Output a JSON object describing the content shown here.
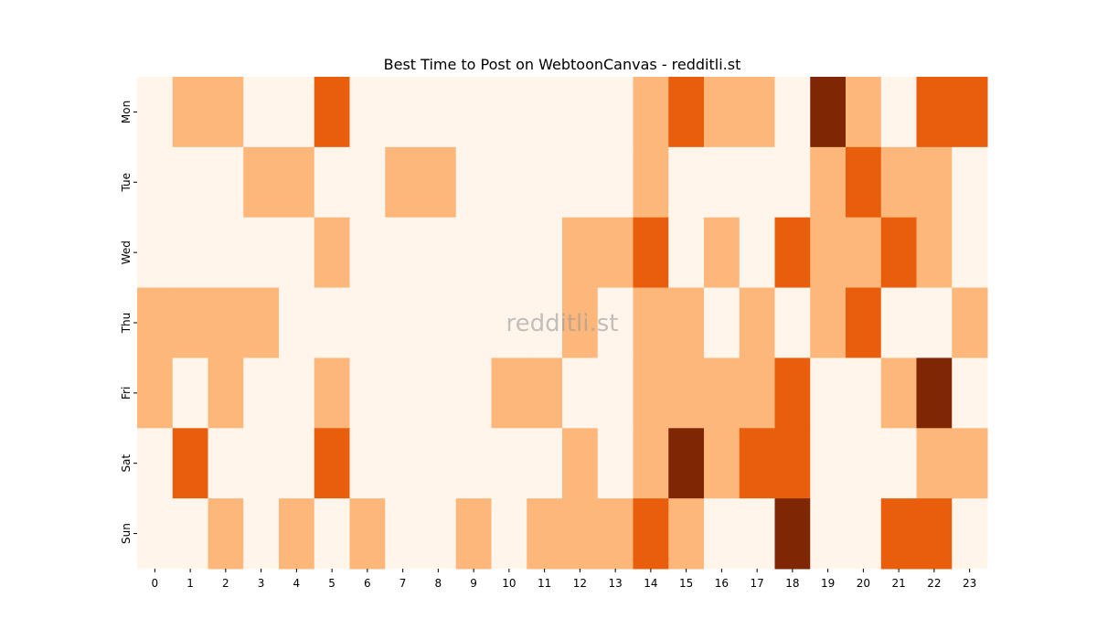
{
  "chart_data": {
    "type": "heatmap",
    "title": "Best Time to Post on WebtoonCanvas - redditli.st",
    "watermark": "redditli.st",
    "x_categories": [
      "0",
      "1",
      "2",
      "3",
      "4",
      "5",
      "6",
      "7",
      "8",
      "9",
      "10",
      "11",
      "12",
      "13",
      "14",
      "15",
      "16",
      "17",
      "18",
      "19",
      "20",
      "21",
      "22",
      "23"
    ],
    "y_categories": [
      "Mon",
      "Tue",
      "Wed",
      "Thu",
      "Fri",
      "Sat",
      "Sun"
    ],
    "values": [
      [
        0,
        1,
        1,
        0,
        0,
        2,
        0,
        0,
        0,
        0,
        0,
        0,
        0,
        0,
        1,
        2,
        1,
        1,
        0,
        3,
        1,
        0,
        2,
        2
      ],
      [
        0,
        0,
        0,
        1,
        1,
        0,
        0,
        1,
        1,
        0,
        0,
        0,
        0,
        0,
        1,
        0,
        0,
        0,
        0,
        1,
        2,
        1,
        1,
        0
      ],
      [
        0,
        0,
        0,
        0,
        0,
        1,
        0,
        0,
        0,
        0,
        0,
        0,
        1,
        1,
        2,
        0,
        1,
        0,
        2,
        1,
        1,
        2,
        1,
        0
      ],
      [
        1,
        1,
        1,
        1,
        0,
        0,
        0,
        0,
        0,
        0,
        0,
        0,
        1,
        0,
        1,
        1,
        0,
        1,
        0,
        1,
        2,
        0,
        0,
        1
      ],
      [
        1,
        0,
        1,
        0,
        0,
        1,
        0,
        0,
        0,
        0,
        1,
        1,
        0,
        0,
        1,
        1,
        1,
        1,
        2,
        0,
        0,
        1,
        3,
        0
      ],
      [
        0,
        2,
        0,
        0,
        0,
        2,
        0,
        0,
        0,
        0,
        0,
        0,
        1,
        0,
        1,
        3,
        1,
        2,
        2,
        0,
        0,
        0,
        1,
        1
      ],
      [
        0,
        0,
        1,
        0,
        1,
        0,
        1,
        0,
        0,
        1,
        0,
        1,
        1,
        1,
        2,
        1,
        0,
        0,
        3,
        0,
        0,
        2,
        2,
        0
      ]
    ],
    "color_scale": [
      "#fff5eb",
      "#fdb77b",
      "#e95e0d",
      "#7f2704"
    ],
    "colorbar": false,
    "grid": false
  }
}
